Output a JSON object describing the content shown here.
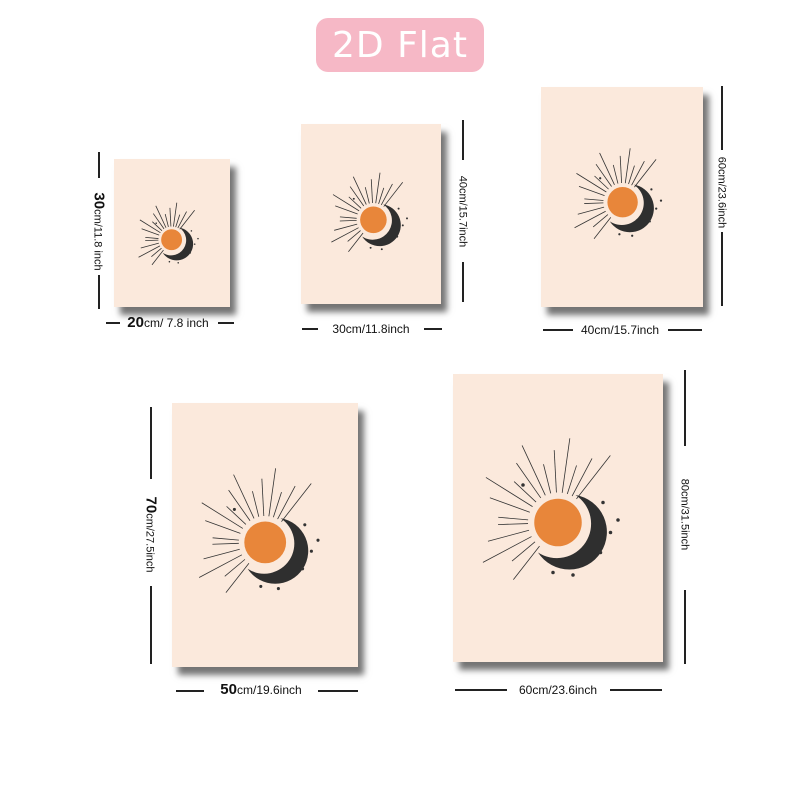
{
  "badge": {
    "label": "2D Flat"
  },
  "posters": [
    {
      "id": "p1",
      "width_label": {
        "big": "20",
        "rest": "cm/ 7.8 inch"
      },
      "height_label": {
        "big": "30",
        "rest": "cm/11.8 inch"
      }
    },
    {
      "id": "p2",
      "width_label": {
        "big": "",
        "rest": "30cm/11.8inch"
      },
      "height_label": {
        "big": "",
        "rest": "40cm/15.7inch"
      }
    },
    {
      "id": "p3",
      "width_label": {
        "big": "",
        "rest": "40cm/15.7inch"
      },
      "height_label": {
        "big": "",
        "rest": "60cm/23.6inch"
      }
    },
    {
      "id": "p4",
      "width_label": {
        "big": "50",
        "rest": "cm/19.6inch"
      },
      "height_label": {
        "big": "70",
        "rest": "cm/27.5inch"
      }
    },
    {
      "id": "p5",
      "width_label": {
        "big": "",
        "rest": "60cm/23.6inch"
      },
      "height_label": {
        "big": "",
        "rest": "80cm/31.5inch"
      }
    }
  ],
  "colors": {
    "badge": "#f6b8c6",
    "paper": "#fbe9dc",
    "sun": "#e8863a",
    "moon": "#2f2f2f"
  }
}
